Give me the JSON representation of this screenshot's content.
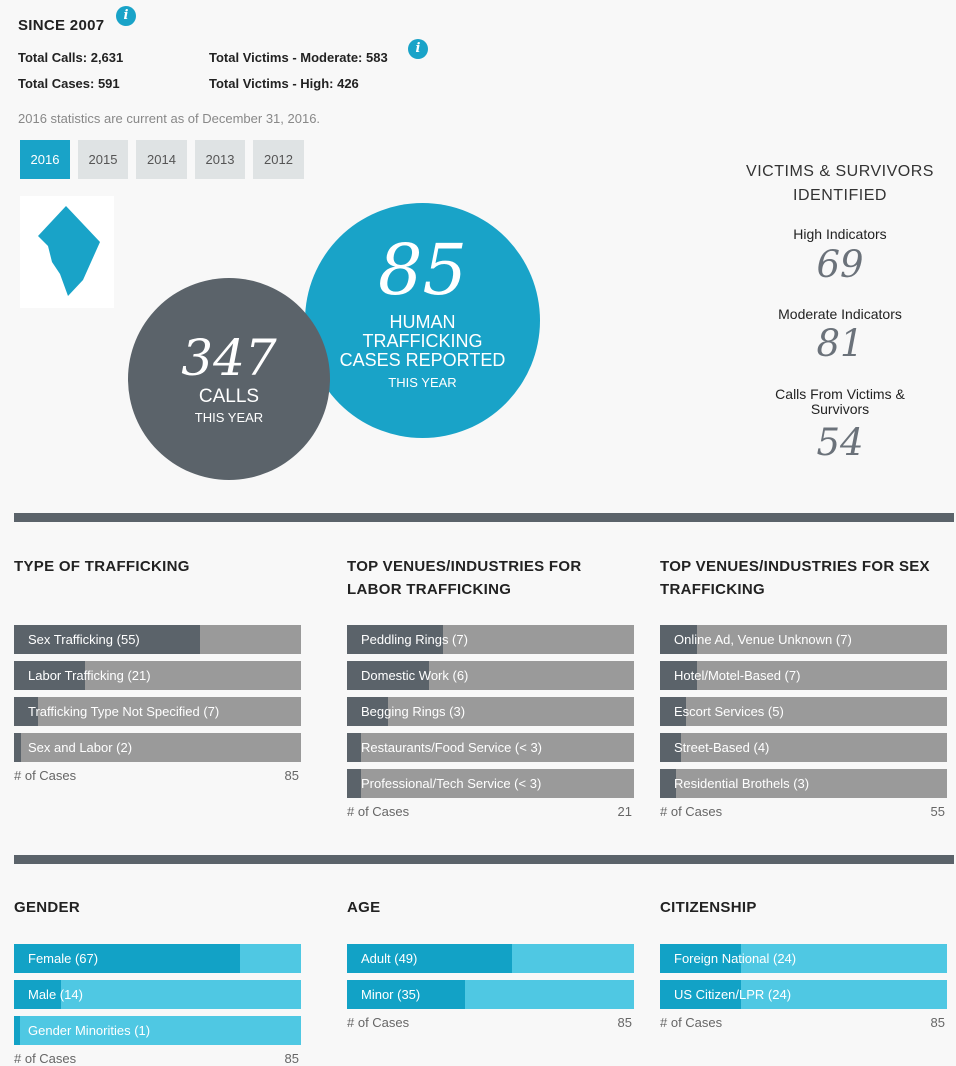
{
  "summary": {
    "heading": "SINCE 2007",
    "total_calls": "Total Calls: 2,631",
    "total_cases": "Total Cases: 591",
    "victims_moderate": "Total Victims - Moderate: 583",
    "victims_high": "Total Victims - High: 426",
    "info_glyph": "i",
    "note": "2016 statistics are current as of December 31, 2016."
  },
  "years": [
    "2016",
    "2015",
    "2014",
    "2013",
    "2012"
  ],
  "selected_year": "2016",
  "colors": {
    "accent": "#19a3c8",
    "dark": "#5b636a",
    "bar_gray": "#9a9a9a",
    "bar_blue_light": "#4fc8e3",
    "bar_blue_dark": "#12a2c6"
  },
  "icons": {
    "info": "info-icon",
    "map": "dc-map-icon"
  },
  "circles": {
    "calls": {
      "number": "347",
      "label": "CALLS",
      "sub": "THIS YEAR"
    },
    "cases": {
      "number": "85",
      "label_lines": [
        "HUMAN",
        "TRAFFICKING",
        "CASES REPORTED"
      ],
      "sub": "THIS YEAR"
    }
  },
  "victims": {
    "heading_lines": [
      "VICTIMS & SURVIVORS",
      "IDENTIFIED"
    ],
    "high": {
      "label": "High Indicators",
      "value": "69"
    },
    "moderate": {
      "label": "Moderate Indicators",
      "value": "81"
    },
    "calls": {
      "label_lines": [
        "Calls From Victims &",
        "Survivors"
      ],
      "value": "54"
    }
  },
  "cases_label": "# of Cases",
  "type_of_trafficking": {
    "title_lines": [
      "TYPE OF TRAFFICKING"
    ],
    "total": 85,
    "rows": [
      {
        "label": "Sex Trafficking (55)",
        "value": 55
      },
      {
        "label": "Labor Trafficking (21)",
        "value": 21
      },
      {
        "label": "Trafficking Type Not Specified (7)",
        "value": 7
      },
      {
        "label": "Sex and Labor (2)",
        "value": 2
      }
    ]
  },
  "labor_venues": {
    "title_lines": [
      "TOP VENUES/INDUSTRIES FOR",
      "LABOR TRAFFICKING"
    ],
    "total": 21,
    "rows": [
      {
        "label": "Peddling Rings (7)",
        "value": 7
      },
      {
        "label": "Domestic Work (6)",
        "value": 6
      },
      {
        "label": "Begging Rings (3)",
        "value": 3
      },
      {
        "label": "Restaurants/Food Service (< 3)",
        "value": 1
      },
      {
        "label": "Professional/Tech Service (< 3)",
        "value": 1
      }
    ]
  },
  "sex_venues": {
    "title_lines": [
      "TOP VENUES/INDUSTRIES FOR SEX",
      "TRAFFICKING"
    ],
    "total": 55,
    "rows": [
      {
        "label": "Online Ad, Venue Unknown (7)",
        "value": 7
      },
      {
        "label": "Hotel/Motel-Based (7)",
        "value": 7
      },
      {
        "label": "Escort Services (5)",
        "value": 5
      },
      {
        "label": "Street-Based (4)",
        "value": 4
      },
      {
        "label": "Residential Brothels (3)",
        "value": 3
      }
    ]
  },
  "gender": {
    "title_lines": [
      "GENDER"
    ],
    "total": 85,
    "rows": [
      {
        "label": "Female (67)",
        "value": 67
      },
      {
        "label": "Male (14)",
        "value": 14
      },
      {
        "label": "Gender Minorities (1)",
        "value": 1
      }
    ]
  },
  "age": {
    "title_lines": [
      "AGE"
    ],
    "total": 85,
    "rows": [
      {
        "label": "Adult (49)",
        "value": 49
      },
      {
        "label": "Minor (35)",
        "value": 35
      }
    ]
  },
  "citizenship": {
    "title_lines": [
      "CITIZENSHIP"
    ],
    "total": 85,
    "rows": [
      {
        "label": "Foreign National (24)",
        "value": 24
      },
      {
        "label": "US Citizen/LPR (24)",
        "value": 24
      }
    ]
  }
}
